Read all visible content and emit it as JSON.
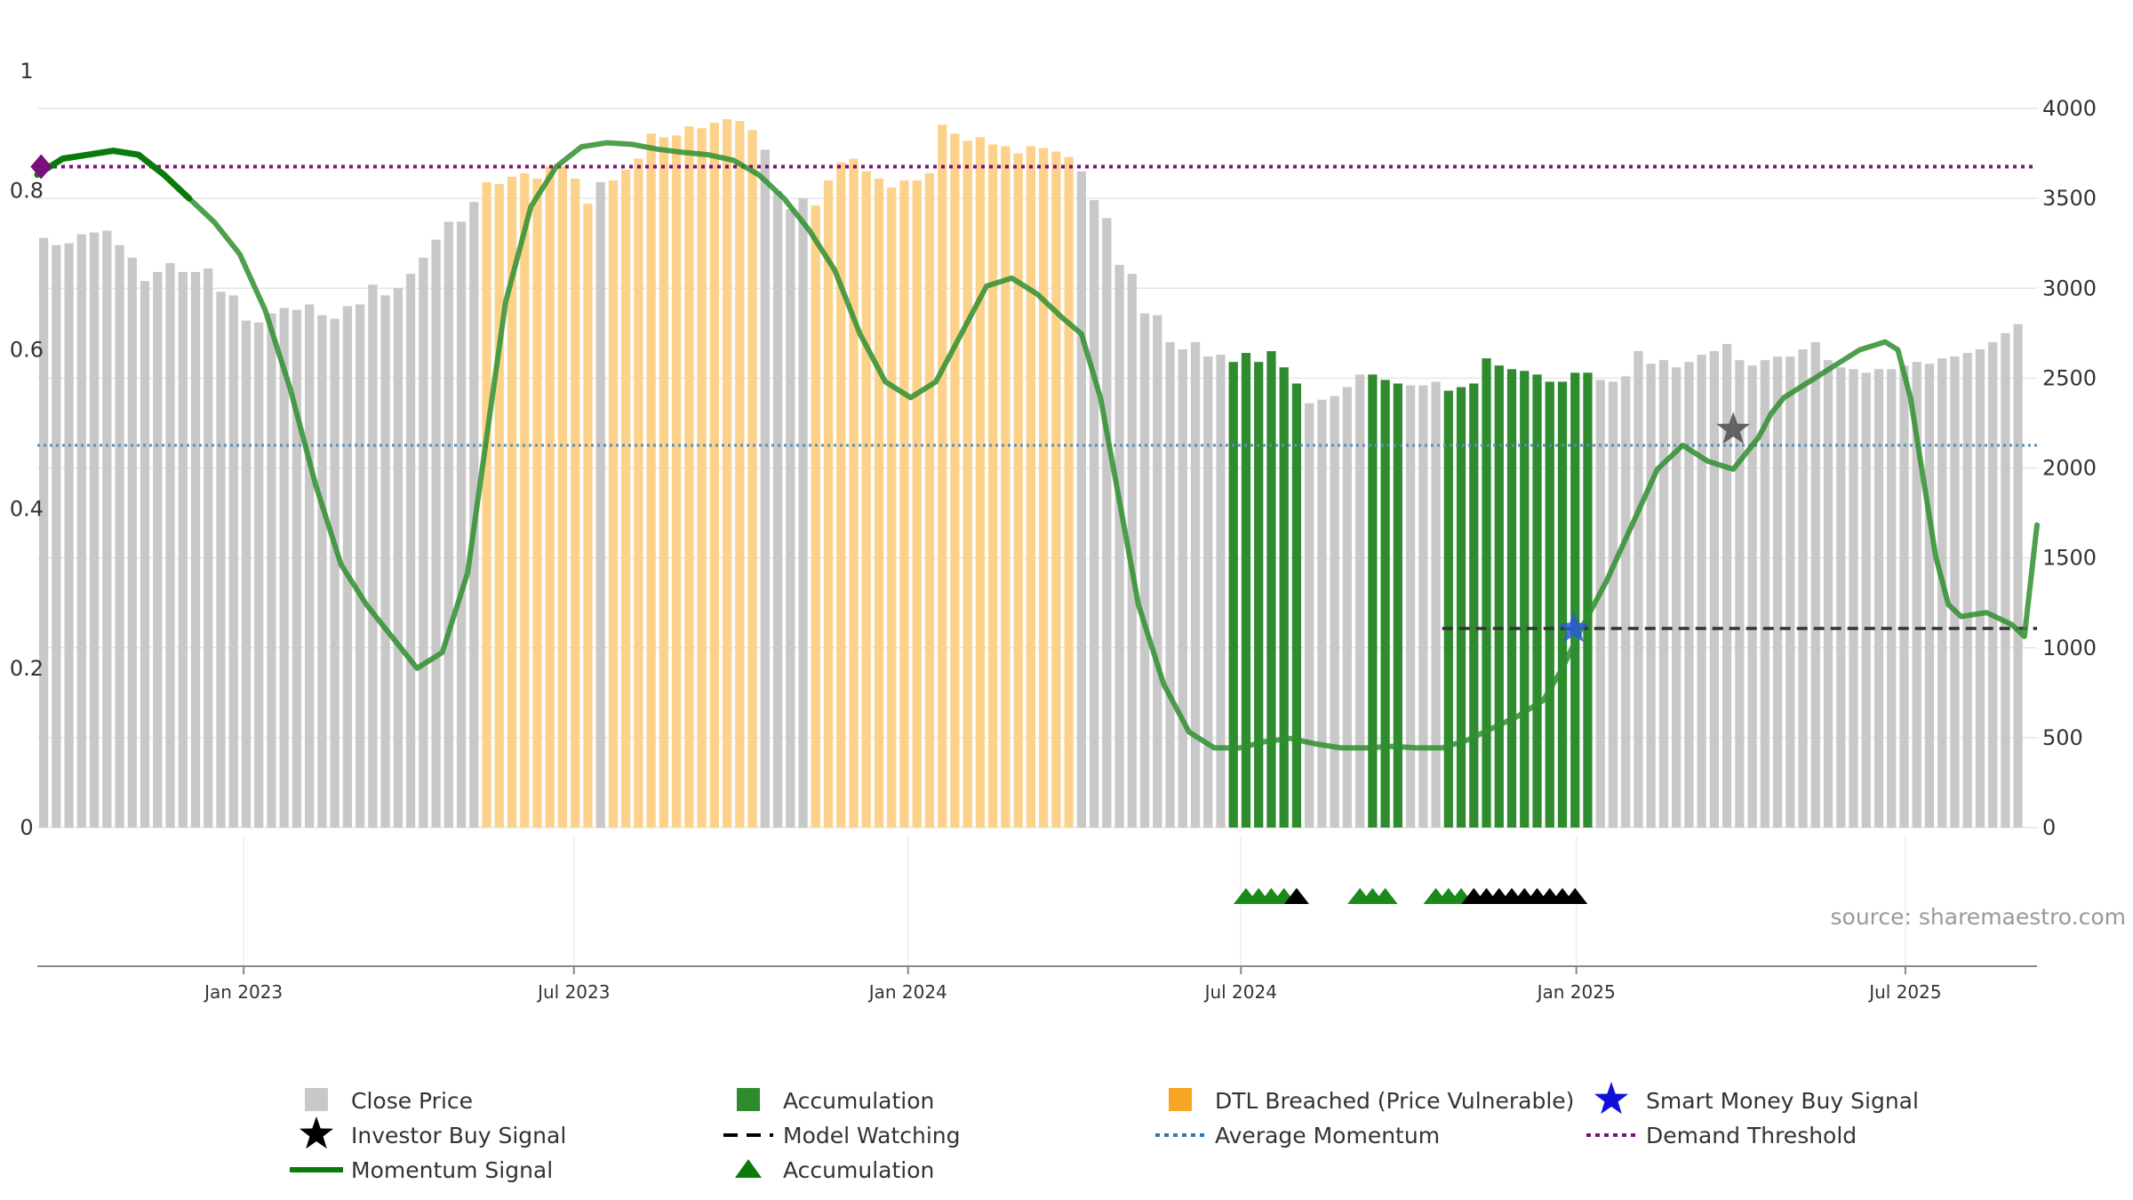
{
  "chart_data": {
    "type": "bar",
    "source_note": "source: sharemaestro.com",
    "colors": {
      "close_price": "#c8c8c8",
      "accumulation": "#2e8b2e",
      "dtl_breached": "#fcd28a",
      "momentum_line": "#2f8f2f",
      "momentum_line_dark": "#0a7a0a",
      "avg_momentum": "#5a8fb8",
      "demand_threshold": "#7b0f7b",
      "model_watching": "#333333",
      "investor_star": "#555555",
      "smart_money_star": "#2a5bd7",
      "accum_triangle_green": "#1a8a1a",
      "accum_triangle_black": "#000000",
      "demand_marker": "#7b0f7b"
    },
    "left_axis": {
      "ylim": [
        0,
        0.95
      ],
      "ticks": [
        {
          "value": 0,
          "label": "0"
        },
        {
          "value": 0.2,
          "label": "0.2"
        },
        {
          "value": 0.4,
          "label": "0.4"
        },
        {
          "value": 0.6,
          "label": "0.6"
        },
        {
          "value": 0.8,
          "label": "0.8"
        },
        {
          "value": 0.95,
          "label": "1"
        }
      ]
    },
    "right_axis": {
      "ylim": [
        0,
        4000
      ],
      "ticks": [
        {
          "value": 0,
          "label": "0"
        },
        {
          "value": 500,
          "label": "500"
        },
        {
          "value": 1000,
          "label": "1000"
        },
        {
          "value": 1500,
          "label": "1500"
        },
        {
          "value": 2000,
          "label": "2000"
        },
        {
          "value": 2500,
          "label": "2500"
        },
        {
          "value": 3000,
          "label": "3000"
        },
        {
          "value": 3500,
          "label": "3500"
        },
        {
          "value": 4000,
          "label": "4000"
        }
      ]
    },
    "x_axis": {
      "start_week": 0,
      "end_week": 158,
      "ticks": [
        {
          "week": 16.3,
          "label": "Jan 2023"
        },
        {
          "week": 42.4,
          "label": "Jul 2023"
        },
        {
          "week": 68.8,
          "label": "Jan 2024"
        },
        {
          "week": 95.1,
          "label": "Jul 2024"
        },
        {
          "week": 121.6,
          "label": "Jan 2025"
        },
        {
          "week": 147.6,
          "label": "Jul 2025"
        }
      ]
    },
    "close_prices": [
      3280,
      3240,
      3250,
      3300,
      3310,
      3320,
      3240,
      3170,
      3040,
      3090,
      3140,
      3090,
      3090,
      3110,
      2980,
      2960,
      2820,
      2810,
      2860,
      2890,
      2880,
      2910,
      2850,
      2830,
      2900,
      2910,
      3020,
      2960,
      3000,
      3080,
      3170,
      3270,
      3370,
      3370,
      3480,
      3590,
      3580,
      3620,
      3640,
      3610,
      3680,
      3680,
      3610,
      3470,
      3590,
      3600,
      3660,
      3720,
      3860,
      3840,
      3850,
      3900,
      3890,
      3920,
      3940,
      3930,
      3880,
      3770,
      3540,
      3440,
      3500,
      3460,
      3600,
      3700,
      3720,
      3650,
      3610,
      3560,
      3600,
      3600,
      3640,
      3910,
      3860,
      3820,
      3840,
      3800,
      3790,
      3750,
      3790,
      3780,
      3760,
      3730,
      3650,
      3490,
      3390,
      3130,
      3080,
      2860,
      2850,
      2700,
      2660,
      2700,
      2620,
      2630,
      2590,
      2640,
      2590,
      2650,
      2560,
      2470,
      2360,
      2380,
      2400,
      2450,
      2520,
      2520,
      2490,
      2470,
      2460,
      2460,
      2480,
      2430,
      2450,
      2470,
      2610,
      2570,
      2550,
      2540,
      2520,
      2480,
      2480,
      2530,
      2530,
      2490,
      2480,
      2510,
      2650,
      2580,
      2600,
      2560,
      2590,
      2630,
      2650,
      2690,
      2600,
      2570,
      2600,
      2620,
      2620,
      2660,
      2700,
      2600,
      2560,
      2550,
      2530,
      2550,
      2550,
      2570,
      2590,
      2580,
      2610,
      2620,
      2640,
      2660,
      2700,
      2750,
      2800
    ],
    "bar_categories": "wwwwwwwwwwwwwwwwwwwwwwwwwwwwwwwwwwwdddddddddwddddddddddddwwwwdddddddddddddddddddddwwwwwwwwwwwwaaaaaawwwwwaaawwwaaaaaaaaaaaawwwwwwwwwwwwwwwwwwwwwwwwwwwwwwwwwwwwwwwwwwwwwwwwwwwwwwwwwwww",
    "momentum": [
      [
        0,
        0.82
      ],
      [
        2,
        0.84
      ],
      [
        4,
        0.845
      ],
      [
        6,
        0.85
      ],
      [
        8,
        0.845
      ],
      [
        10,
        0.82
      ],
      [
        12,
        0.79
      ],
      [
        14,
        0.76
      ],
      [
        16,
        0.72
      ],
      [
        18,
        0.65
      ],
      [
        20,
        0.55
      ],
      [
        22,
        0.43
      ],
      [
        24,
        0.33
      ],
      [
        26,
        0.28
      ],
      [
        28,
        0.24
      ],
      [
        30,
        0.2
      ],
      [
        32,
        0.22
      ],
      [
        34,
        0.32
      ],
      [
        35.5,
        0.49
      ],
      [
        37,
        0.66
      ],
      [
        39,
        0.78
      ],
      [
        41,
        0.83
      ],
      [
        43,
        0.855
      ],
      [
        45,
        0.86
      ],
      [
        47,
        0.858
      ],
      [
        49,
        0.852
      ],
      [
        51,
        0.848
      ],
      [
        53,
        0.845
      ],
      [
        55,
        0.838
      ],
      [
        57,
        0.82
      ],
      [
        59,
        0.79
      ],
      [
        61,
        0.75
      ],
      [
        63,
        0.7
      ],
      [
        65,
        0.62
      ],
      [
        67,
        0.56
      ],
      [
        69,
        0.54
      ],
      [
        71,
        0.56
      ],
      [
        73,
        0.62
      ],
      [
        75,
        0.68
      ],
      [
        77,
        0.69
      ],
      [
        79,
        0.67
      ],
      [
        81,
        0.64
      ],
      [
        82.5,
        0.62
      ],
      [
        84,
        0.54
      ],
      [
        85.5,
        0.41
      ],
      [
        87,
        0.28
      ],
      [
        89,
        0.18
      ],
      [
        91,
        0.12
      ],
      [
        93,
        0.1
      ],
      [
        95,
        0.1
      ],
      [
        97,
        0.108
      ],
      [
        99,
        0.112
      ],
      [
        101,
        0.105
      ],
      [
        103,
        0.1
      ],
      [
        105,
        0.1
      ],
      [
        107,
        0.102
      ],
      [
        109,
        0.1
      ],
      [
        111,
        0.1
      ],
      [
        113,
        0.11
      ],
      [
        115,
        0.125
      ],
      [
        117,
        0.14
      ],
      [
        119,
        0.16
      ],
      [
        120.5,
        0.2
      ],
      [
        122,
        0.25
      ],
      [
        124,
        0.31
      ],
      [
        126,
        0.38
      ],
      [
        128,
        0.45
      ],
      [
        130,
        0.48
      ],
      [
        132,
        0.46
      ],
      [
        134,
        0.45
      ],
      [
        136,
        0.49
      ],
      [
        137,
        0.52
      ],
      [
        138,
        0.54
      ],
      [
        140,
        0.56
      ],
      [
        142,
        0.58
      ],
      [
        144,
        0.6
      ],
      [
        146,
        0.61
      ],
      [
        147,
        0.6
      ],
      [
        148,
        0.54
      ],
      [
        149,
        0.44
      ],
      [
        150,
        0.34
      ],
      [
        151,
        0.28
      ],
      [
        152,
        0.265
      ],
      [
        154,
        0.27
      ],
      [
        156,
        0.255
      ],
      [
        157,
        0.24
      ],
      [
        158,
        0.38
      ]
    ],
    "momentum_dark_until_week": 12.5,
    "average_momentum": 0.48,
    "demand_threshold": 0.83,
    "model_watching": {
      "from_week": 111,
      "to_week": 158,
      "value": 0.25
    },
    "investor_buy_signal": {
      "week": 134,
      "value": 0.5
    },
    "smart_money_buy_signal": {
      "week": 121.4,
      "value": 0.25
    },
    "demand_marker_week": 0.3,
    "accumulation_triangles": [
      {
        "week": 95,
        "color": "green"
      },
      {
        "week": 96,
        "color": "green"
      },
      {
        "week": 97,
        "color": "green"
      },
      {
        "week": 98,
        "color": "green"
      },
      {
        "week": 99,
        "color": "black"
      },
      {
        "week": 104,
        "color": "green"
      },
      {
        "week": 105,
        "color": "green"
      },
      {
        "week": 106,
        "color": "green"
      },
      {
        "week": 110,
        "color": "green"
      },
      {
        "week": 111,
        "color": "green"
      },
      {
        "week": 112,
        "color": "green"
      },
      {
        "week": 113,
        "color": "black"
      },
      {
        "week": 114,
        "color": "black"
      },
      {
        "week": 115,
        "color": "black"
      },
      {
        "week": 116,
        "color": "black"
      },
      {
        "week": 117,
        "color": "black"
      },
      {
        "week": 118,
        "color": "black"
      },
      {
        "week": 119,
        "color": "black"
      },
      {
        "week": 120,
        "color": "black"
      },
      {
        "week": 121,
        "color": "black"
      }
    ],
    "legend": [
      {
        "key": "close-price",
        "label": "Close Price",
        "marker": "square-gray"
      },
      {
        "key": "accumulation-bar",
        "label": "Accumulation",
        "marker": "square-green"
      },
      {
        "key": "dtl-breached",
        "label": "DTL Breached (Price Vulnerable)",
        "marker": "square-orange"
      },
      {
        "key": "smart-money-buy-signal",
        "label": "Smart Money Buy Signal",
        "marker": "star-blue"
      },
      {
        "key": "investor-buy-signal",
        "label": "Investor Buy Signal",
        "marker": "star-black"
      },
      {
        "key": "model-watching",
        "label": "Model Watching",
        "marker": "dash-black"
      },
      {
        "key": "average-momentum",
        "label": "Average Momentum",
        "marker": "dot-blue"
      },
      {
        "key": "demand-threshold",
        "label": "Demand Threshold",
        "marker": "dot-purple"
      },
      {
        "key": "momentum-signal",
        "label": "Momentum Signal",
        "marker": "line-green"
      },
      {
        "key": "accumulation-triangle",
        "label": "Accumulation",
        "marker": "triangle-green"
      }
    ]
  }
}
